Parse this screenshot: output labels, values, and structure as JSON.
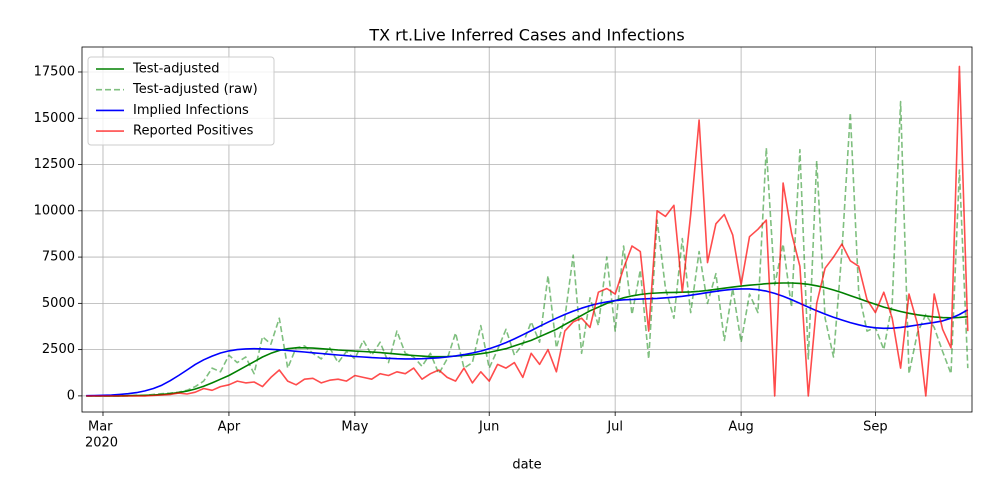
{
  "chart_data": {
    "type": "line",
    "title": "TX rt.Live Inferred Cases and Infections",
    "x_label": "date",
    "year_label": "2020",
    "categories": [
      null,
      null,
      "Mar",
      null,
      null,
      null,
      null,
      null,
      null,
      null,
      null,
      null,
      null,
      null,
      null,
      null,
      null,
      "Apr",
      null,
      null,
      null,
      null,
      null,
      null,
      null,
      null,
      null,
      null,
      null,
      null,
      null,
      null,
      "May",
      null,
      null,
      null,
      null,
      null,
      null,
      null,
      null,
      null,
      null,
      null,
      null,
      null,
      null,
      null,
      "Jun",
      null,
      null,
      null,
      null,
      null,
      null,
      null,
      null,
      null,
      null,
      null,
      null,
      null,
      null,
      "Jul",
      null,
      null,
      null,
      null,
      null,
      null,
      null,
      null,
      null,
      null,
      null,
      null,
      null,
      null,
      "Aug",
      null,
      null,
      null,
      null,
      null,
      null,
      null,
      null,
      null,
      null,
      null,
      null,
      null,
      null,
      null,
      "Sep",
      null,
      null,
      null,
      null,
      null,
      null,
      null,
      null,
      null,
      null,
      null
    ],
    "ylim": [
      -870,
      18850
    ],
    "yticks": [
      0,
      2500,
      5000,
      7500,
      10000,
      12500,
      15000,
      17500
    ],
    "grid": true,
    "legend": "upper-left",
    "series": [
      {
        "name": "Test-adjusted",
        "color": "#008000",
        "dashed": false,
        "alpha": 1,
        "values": [
          0,
          0,
          0,
          0,
          0,
          10,
          20,
          30,
          50,
          80,
          120,
          180,
          260,
          370,
          520,
          700,
          900,
          1100,
          1350,
          1600,
          1850,
          2100,
          2300,
          2450,
          2550,
          2600,
          2600,
          2580,
          2550,
          2520,
          2480,
          2450,
          2420,
          2400,
          2370,
          2340,
          2300,
          2260,
          2220,
          2180,
          2150,
          2120,
          2120,
          2130,
          2150,
          2180,
          2220,
          2280,
          2350,
          2450,
          2550,
          2700,
          2850,
          3000,
          3200,
          3400,
          3600,
          3850,
          4100,
          4350,
          4600,
          4800,
          5000,
          5150,
          5300,
          5400,
          5480,
          5530,
          5560,
          5580,
          5590,
          5600,
          5620,
          5650,
          5700,
          5760,
          5820,
          5880,
          5930,
          5980,
          6020,
          6060,
          6090,
          6100,
          6100,
          6080,
          6030,
          5950,
          5850,
          5720,
          5580,
          5420,
          5260,
          5100,
          4950,
          4800,
          4680,
          4560,
          4460,
          4380,
          4320,
          4270,
          4230,
          4220,
          4240,
          4280
        ]
      },
      {
        "name": "Test-adjusted (raw)",
        "color": "#008000",
        "dashed": true,
        "alpha": 0.5,
        "values": [
          0,
          0,
          0,
          0,
          0,
          0,
          30,
          20,
          80,
          120,
          150,
          200,
          300,
          500,
          800,
          1500,
          1300,
          2200,
          1800,
          2100,
          1200,
          3200,
          2800,
          4200,
          1500,
          2600,
          2700,
          2300,
          2000,
          2600,
          1800,
          2400,
          2000,
          3000,
          2200,
          2900,
          1800,
          3500,
          2300,
          2100,
          1600,
          2300,
          1200,
          2000,
          3400,
          1500,
          1800,
          3800,
          1500,
          2500,
          3600,
          2200,
          2800,
          4000,
          2900,
          6500,
          2600,
          4200,
          7600,
          2300,
          5300,
          3800,
          7500,
          3500,
          8100,
          4400,
          6800,
          2000,
          9500,
          5800,
          4200,
          8500,
          4500,
          7800,
          5000,
          6600,
          3000,
          5800,
          2900,
          5500,
          4500,
          13400,
          6000,
          8200,
          4800,
          13300,
          2000,
          12700,
          4200,
          2100,
          7800,
          15300,
          5600,
          3500,
          3700,
          2500,
          5000,
          15900,
          1200,
          3400,
          4400,
          3700,
          2400,
          1200,
          12200,
          1500
        ]
      },
      {
        "name": "Implied Infections",
        "color": "#0000ff",
        "dashed": false,
        "alpha": 1,
        "values": [
          10,
          20,
          30,
          50,
          80,
          120,
          180,
          270,
          400,
          580,
          820,
          1100,
          1400,
          1700,
          1950,
          2150,
          2320,
          2430,
          2500,
          2540,
          2550,
          2540,
          2520,
          2490,
          2450,
          2410,
          2370,
          2330,
          2290,
          2250,
          2210,
          2170,
          2130,
          2100,
          2070,
          2050,
          2030,
          2010,
          2000,
          2000,
          2010,
          2030,
          2060,
          2100,
          2160,
          2230,
          2320,
          2420,
          2550,
          2700,
          2880,
          3080,
          3300,
          3530,
          3760,
          3980,
          4200,
          4400,
          4580,
          4740,
          4880,
          4990,
          5080,
          5150,
          5190,
          5210,
          5230,
          5250,
          5270,
          5300,
          5330,
          5380,
          5440,
          5510,
          5580,
          5650,
          5710,
          5760,
          5780,
          5780,
          5740,
          5660,
          5540,
          5380,
          5200,
          5000,
          4800,
          4600,
          4420,
          4250,
          4100,
          3960,
          3840,
          3740,
          3680,
          3650,
          3660,
          3700,
          3760,
          3830,
          3900,
          3970,
          4050,
          4200,
          4400,
          4650
        ]
      },
      {
        "name": "Reported Positives",
        "color": "#ff0000",
        "dashed": false,
        "alpha": 0.7,
        "values": [
          0,
          0,
          0,
          0,
          0,
          0,
          0,
          0,
          20,
          50,
          80,
          150,
          100,
          200,
          400,
          300,
          500,
          600,
          800,
          700,
          750,
          500,
          1000,
          1400,
          800,
          600,
          900,
          950,
          700,
          850,
          900,
          800,
          1100,
          1000,
          900,
          1200,
          1100,
          1300,
          1200,
          1500,
          900,
          1200,
          1400,
          1000,
          800,
          1500,
          700,
          1300,
          800,
          1700,
          1500,
          1800,
          1000,
          2300,
          1700,
          2500,
          1300,
          3500,
          4000,
          4200,
          3700,
          5600,
          5800,
          5500,
          6900,
          8100,
          7800,
          3500,
          10000,
          9700,
          10300,
          5600,
          9800,
          14900,
          7200,
          9300,
          9800,
          8700,
          6000,
          8600,
          9000,
          9500,
          0,
          11500,
          8800,
          7000,
          0,
          5000,
          6900,
          7500,
          8200,
          7300,
          7000,
          5200,
          4500,
          5600,
          4200,
          1500,
          5500,
          3900,
          0,
          5500,
          3600,
          2600,
          17800,
          3500
        ]
      }
    ]
  }
}
